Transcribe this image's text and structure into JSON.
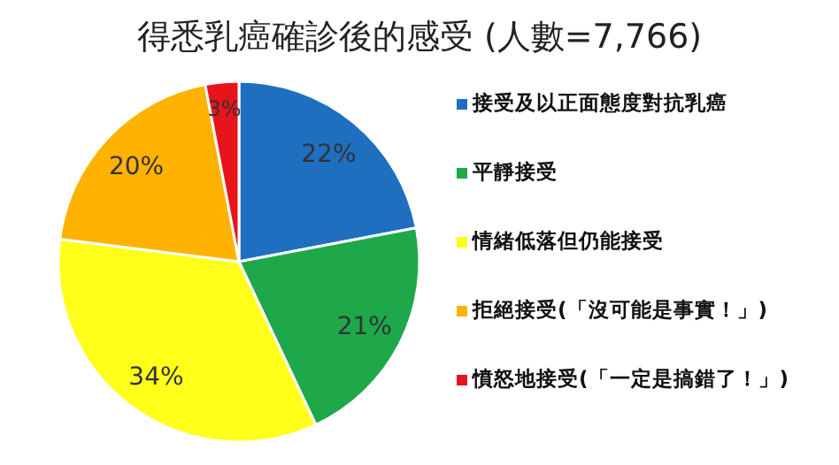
{
  "chart_data": {
    "type": "pie",
    "title": "得悉乳癌確診後的感受 (人數=7,766)",
    "categories": [
      "接受及以正面態度對抗乳癌",
      "平靜接受",
      "情緒低落但仍能接受",
      "拒絕接受(「沒可能是事實！」)",
      "憤怒地接受(「一定是搞錯了！」)"
    ],
    "values": [
      22,
      21,
      34,
      20,
      3
    ],
    "colors": [
      "#1f6fc0",
      "#1fa84a",
      "#ffff1a",
      "#ffb300",
      "#e8141c"
    ],
    "value_labels": [
      "22%",
      "21%",
      "34%",
      "20%",
      "3%"
    ],
    "legend": "right"
  }
}
